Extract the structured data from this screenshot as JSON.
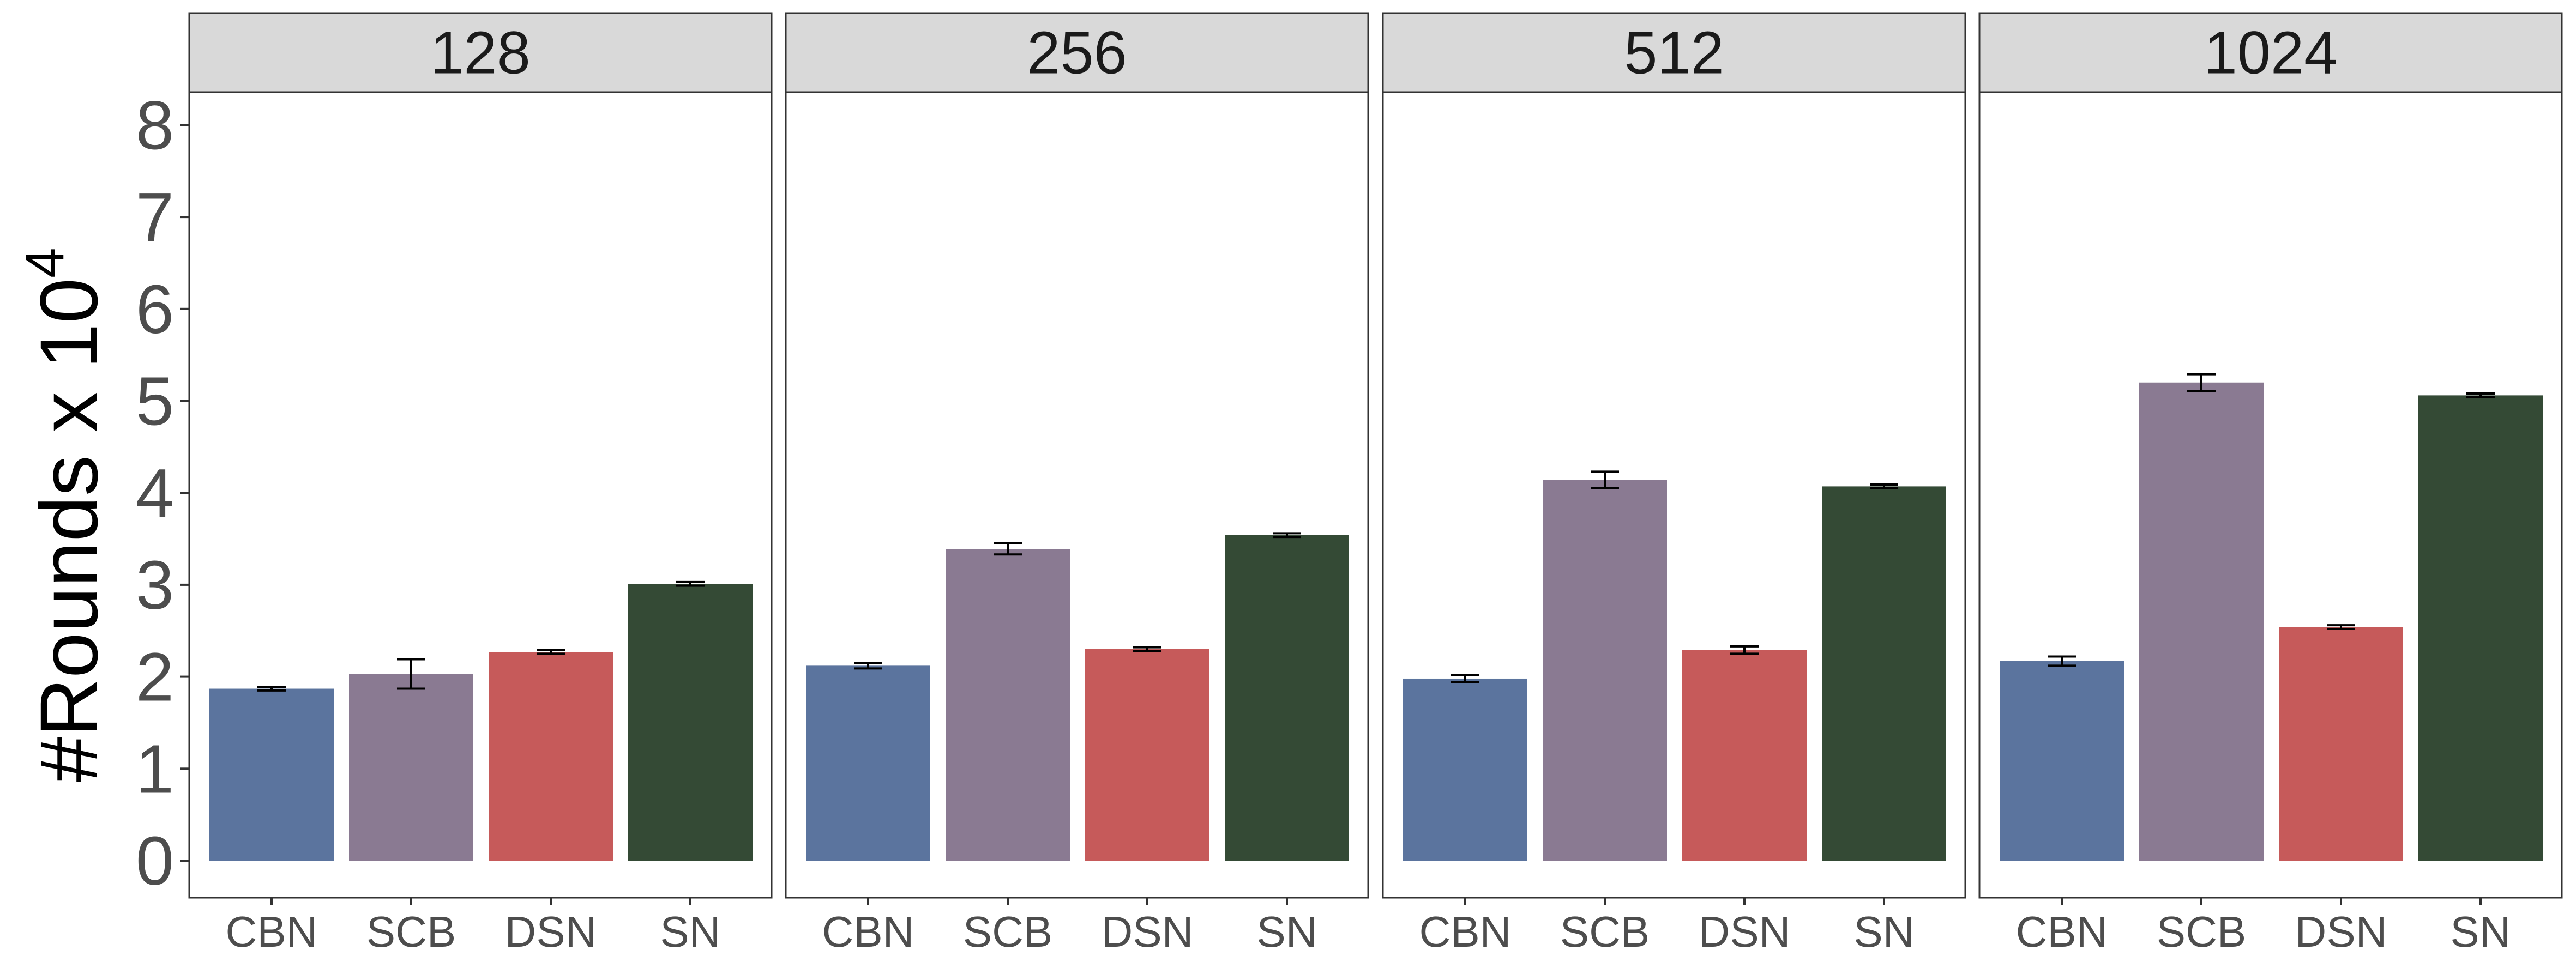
{
  "chart_data": {
    "type": "bar",
    "ylabel": "#Rounds x 10",
    "ylabel_superscript": "4",
    "ylim": [
      0,
      8.4
    ],
    "yticks": [
      0,
      1,
      2,
      3,
      4,
      5,
      6,
      7,
      8
    ],
    "categories": [
      "CBN",
      "SCB",
      "DSN",
      "SN"
    ],
    "colors": {
      "CBN": "#5B749E",
      "SCB": "#8A7A92",
      "DSN": "#C65A5A",
      "SN": "#344A35"
    },
    "panel_strip_color": "#D9D9D9",
    "error_bars": true,
    "panels": [
      {
        "label": "128",
        "values": [
          1.87,
          2.03,
          2.27,
          3.01
        ],
        "errors": [
          0.02,
          0.16,
          0.02,
          0.02
        ]
      },
      {
        "label": "256",
        "values": [
          2.12,
          3.39,
          2.3,
          3.54
        ],
        "errors": [
          0.03,
          0.06,
          0.02,
          0.02
        ]
      },
      {
        "label": "512",
        "values": [
          1.98,
          4.14,
          2.29,
          4.07
        ],
        "errors": [
          0.04,
          0.09,
          0.04,
          0.02
        ]
      },
      {
        "label": "1024",
        "values": [
          2.17,
          5.2,
          2.54,
          5.06
        ],
        "errors": [
          0.05,
          0.09,
          0.02,
          0.02
        ]
      }
    ]
  }
}
